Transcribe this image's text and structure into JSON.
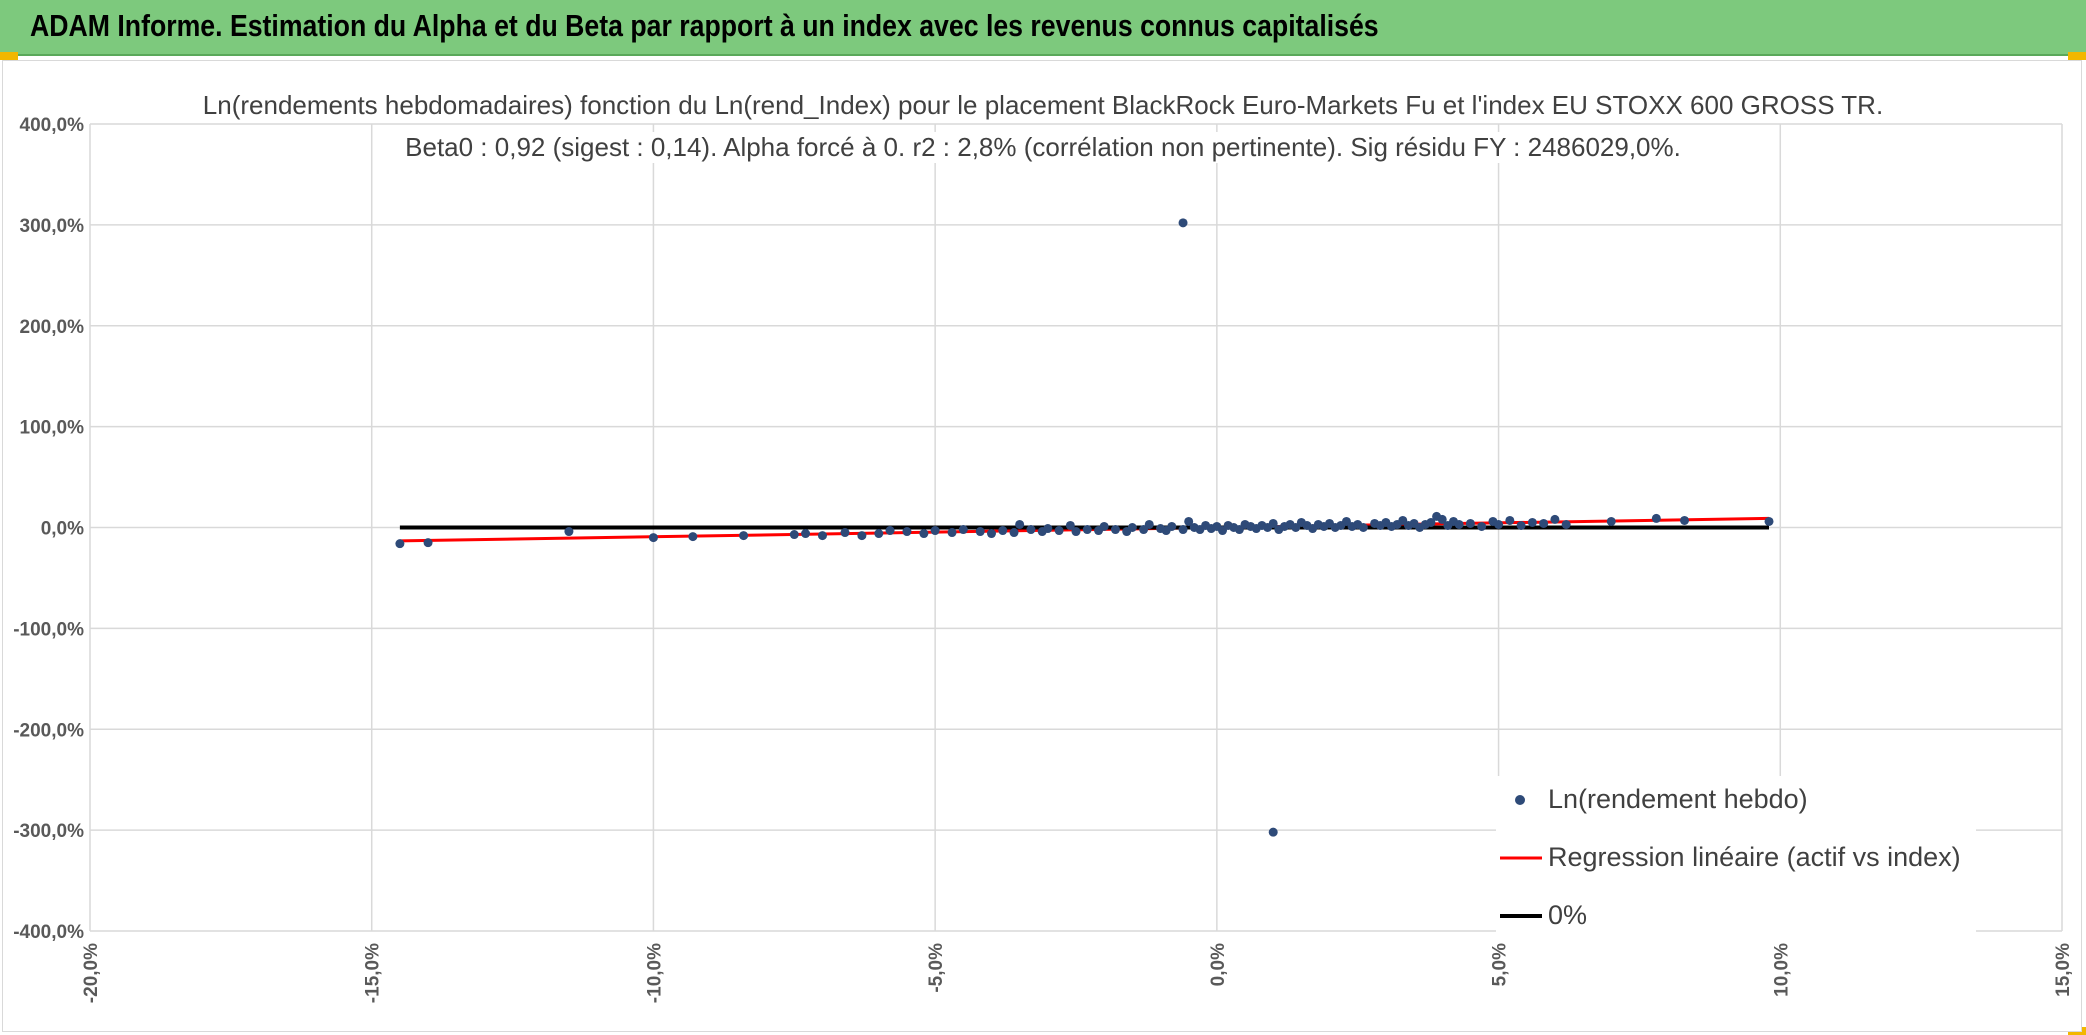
{
  "header": {
    "title": "ADAM Informe. Estimation du Alpha et du Beta par rapport à un index avec les revenus connus capitalisés"
  },
  "colors": {
    "header_bg": "#7dc97d",
    "accent_corner": "#f2b700",
    "points": "#2e4a78",
    "regression": "#ff0000",
    "zero_line": "#000000",
    "grid": "#d9d9d9"
  },
  "chart_data": {
    "type": "scatter",
    "title_line1": "Ln(rendements hebdomadaires) fonction du Ln(rend_Index) pour le placement BlackRock Euro-Markets Fu et l'index EU STOXX 600 GROSS TR.",
    "title_line2": "Beta0 : 0,92 (sigest : 0,14). Alpha forcé à 0. r2 : 2,8% (corrélation non pertinente). Sig résidu FY : 2486029,0%.",
    "xlim": [
      -20,
      15
    ],
    "ylim": [
      -400,
      400
    ],
    "x_ticks": [
      "-20,0%",
      "-15,0%",
      "-10,0%",
      "-5,0%",
      "0,0%",
      "5,0%",
      "10,0%",
      "15,0%"
    ],
    "y_ticks": [
      "400,0%",
      "300,0%",
      "200,0%",
      "100,0%",
      "0,0%",
      "-100,0%",
      "-200,0%",
      "-300,0%",
      "-400,0%"
    ],
    "grid": true,
    "legend_position": "bottom-right",
    "series": [
      {
        "name": "Ln(rendement hebdo)",
        "kind": "points",
        "points": [
          [
            -14.5,
            -16
          ],
          [
            -14.0,
            -15
          ],
          [
            -11.5,
            -4
          ],
          [
            -10.0,
            -10
          ],
          [
            -9.3,
            -9
          ],
          [
            -8.4,
            -8
          ],
          [
            -7.5,
            -7
          ],
          [
            -7.3,
            -6
          ],
          [
            -7.0,
            -8
          ],
          [
            -6.6,
            -5
          ],
          [
            -6.3,
            -8
          ],
          [
            -6.0,
            -6
          ],
          [
            -5.8,
            -3
          ],
          [
            -5.5,
            -4
          ],
          [
            -5.2,
            -6
          ],
          [
            -5.0,
            -3
          ],
          [
            -4.7,
            -5
          ],
          [
            -4.5,
            -2
          ],
          [
            -4.2,
            -4
          ],
          [
            -4.0,
            -6
          ],
          [
            -3.8,
            -3
          ],
          [
            -3.6,
            -5
          ],
          [
            -3.5,
            3
          ],
          [
            -3.3,
            -2
          ],
          [
            -3.1,
            -4
          ],
          [
            -3.0,
            -1
          ],
          [
            -2.8,
            -3
          ],
          [
            -2.6,
            2
          ],
          [
            -2.5,
            -4
          ],
          [
            -2.3,
            -2
          ],
          [
            -2.1,
            -3
          ],
          [
            -2.0,
            1
          ],
          [
            -1.8,
            -2
          ],
          [
            -1.6,
            -4
          ],
          [
            -1.5,
            0
          ],
          [
            -1.3,
            -2
          ],
          [
            -1.2,
            3
          ],
          [
            -1.0,
            -1
          ],
          [
            -0.9,
            -3
          ],
          [
            -0.8,
            1
          ],
          [
            -0.6,
            -2
          ],
          [
            -0.5,
            6
          ],
          [
            -0.4,
            0
          ],
          [
            -0.3,
            -2
          ],
          [
            -0.2,
            2
          ],
          [
            -0.1,
            -1
          ],
          [
            0.0,
            1
          ],
          [
            0.1,
            -3
          ],
          [
            0.2,
            2
          ],
          [
            0.3,
            0
          ],
          [
            0.4,
            -2
          ],
          [
            0.5,
            3
          ],
          [
            0.6,
            1
          ],
          [
            0.7,
            -1
          ],
          [
            0.8,
            2
          ],
          [
            0.9,
            0
          ],
          [
            1.0,
            4
          ],
          [
            1.1,
            -2
          ],
          [
            1.2,
            1
          ],
          [
            1.3,
            3
          ],
          [
            1.4,
            0
          ],
          [
            1.5,
            5
          ],
          [
            1.6,
            2
          ],
          [
            1.7,
            -1
          ],
          [
            1.8,
            3
          ],
          [
            1.9,
            1
          ],
          [
            2.0,
            4
          ],
          [
            2.1,
            0
          ],
          [
            2.2,
            2
          ],
          [
            2.3,
            6
          ],
          [
            2.4,
            1
          ],
          [
            2.5,
            3
          ],
          [
            2.6,
            0
          ],
          [
            2.8,
            4
          ],
          [
            2.9,
            2
          ],
          [
            3.0,
            5
          ],
          [
            3.1,
            1
          ],
          [
            3.2,
            3
          ],
          [
            3.3,
            7
          ],
          [
            3.4,
            2
          ],
          [
            3.5,
            4
          ],
          [
            3.6,
            0
          ],
          [
            3.7,
            3
          ],
          [
            3.8,
            5
          ],
          [
            3.9,
            11
          ],
          [
            4.0,
            8
          ],
          [
            4.1,
            2
          ],
          [
            4.2,
            6
          ],
          [
            4.3,
            3
          ],
          [
            4.5,
            4
          ],
          [
            4.7,
            1
          ],
          [
            4.9,
            6
          ],
          [
            5.0,
            3
          ],
          [
            5.2,
            7
          ],
          [
            5.4,
            2
          ],
          [
            5.6,
            5
          ],
          [
            5.8,
            4
          ],
          [
            6.0,
            8
          ],
          [
            6.2,
            3
          ],
          [
            7.0,
            6
          ],
          [
            7.8,
            9
          ],
          [
            8.3,
            7
          ],
          [
            9.8,
            6
          ],
          [
            -0.6,
            302
          ],
          [
            1.0,
            -302
          ]
        ]
      },
      {
        "name": "Regression linéaire (actif vs index)",
        "kind": "line",
        "points": [
          [
            -14.5,
            -13.3
          ],
          [
            9.8,
            9.0
          ]
        ]
      },
      {
        "name": "0%",
        "kind": "line",
        "points": [
          [
            -14.5,
            0
          ],
          [
            9.8,
            0
          ]
        ]
      }
    ]
  }
}
